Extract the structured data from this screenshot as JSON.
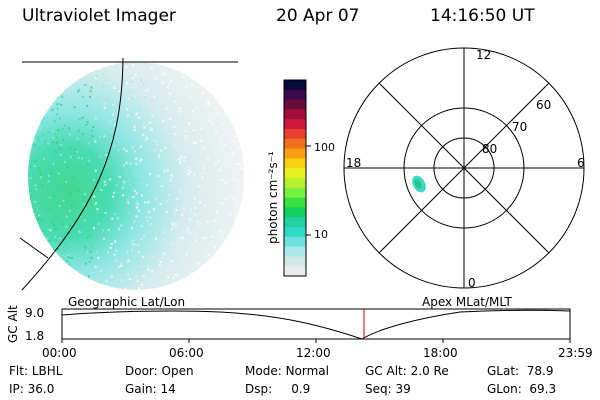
{
  "header": {
    "title": "Ultraviolet Imager",
    "date": "20 Apr 07",
    "time": "14:16:50 UT"
  },
  "colorbar": {
    "label": "photon cm⁻²s⁻¹",
    "tick_labels": [
      "100",
      "10"
    ],
    "colors_top_to_bottom": [
      "#0a0a3a",
      "#3a0a4a",
      "#6a0a3a",
      "#a0103a",
      "#d0183a",
      "#e84030",
      "#f07020",
      "#f8a010",
      "#f8d010",
      "#e8f020",
      "#b8f030",
      "#78f040",
      "#38e040",
      "#10d060",
      "#20d0a0",
      "#30d8c8",
      "#70e0e0",
      "#a8e8e8",
      "#d0e8e8",
      "#e8ecec"
    ]
  },
  "polar": {
    "mlt_labels": {
      "top": "12",
      "left": "18",
      "right": "6",
      "bottom": "0"
    },
    "lat_labels": [
      "60",
      "70",
      "80"
    ]
  },
  "timeline": {
    "y_label": "GC Alt",
    "y_ticks": [
      "9.0",
      "1.8"
    ],
    "left_title": "Geographic Lat/Lon",
    "right_title": "Apex  MLat/MLT",
    "x_ticks": [
      "00:00",
      "06:00",
      "12:00",
      "18:00",
      "23:59"
    ],
    "marker_time": "14:16:50"
  },
  "info": {
    "flt_label": "Flt:",
    "flt_value": "LBHL",
    "ip_label": "IP:",
    "ip_value": "36.0",
    "door_label": "Door:",
    "door_value": "Open",
    "gain_label": "Gain:",
    "gain_value": "14",
    "mode_label": "Mode:",
    "mode_value": "Normal",
    "dsp_label": "Dsp:",
    "dsp_value": "0.9",
    "gcalt_label": "GC Alt:",
    "gcalt_value": "2.0 Re",
    "seq_label": "Seq:",
    "seq_value": "39",
    "glat_label": "GLat:",
    "glat_value": "78.9",
    "glon_label": "GLon:",
    "glon_value": "69.3"
  }
}
